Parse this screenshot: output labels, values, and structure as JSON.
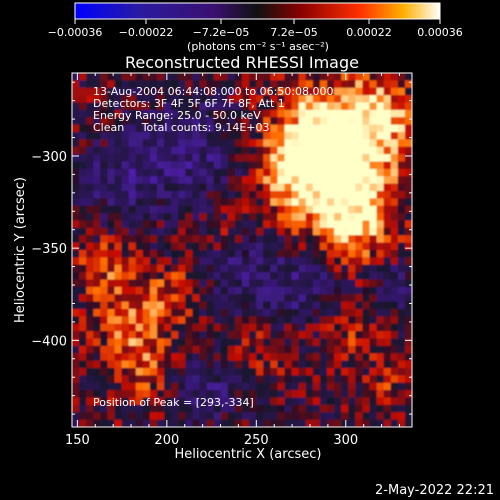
{
  "chart_data": {
    "type": "heatmap",
    "title": "Reconstructed RHESSI Image",
    "xlabel": "Heliocentric X (arcsec)",
    "ylabel": "Heliocentric Y (arcsec)",
    "xlim": [
      147,
      337
    ],
    "ylim": [
      -447,
      -255
    ],
    "xticks": [
      150,
      200,
      250,
      300
    ],
    "yticks": [
      -300,
      -350,
      -400
    ],
    "colorbar": {
      "label": "(photons cm⁻² s⁻¹ asec⁻²)",
      "range": [
        -0.00036,
        0.00036
      ],
      "ticks": [
        {
          "value": -0.00036,
          "label": "−0.00036"
        },
        {
          "value": -0.00022,
          "label": "−0.00022"
        },
        {
          "value": -7.2e-05,
          "label": "−7.2e−05"
        },
        {
          "value": 7.2e-05,
          "label": "7.2e−05"
        },
        {
          "value": 0.00022,
          "label": "0.00022"
        },
        {
          "value": 0.00036,
          "label": "0.00036"
        }
      ]
    },
    "annotations": [
      "13-Aug-2004 06:44:08.000 to 06:50:08.000",
      "Detectors: 3F 4F 5F 6F 7F 8F, Att 1",
      "Energy Range: 25.0 - 50.0 keV",
      "Clean     Total counts: 9.14E+03"
    ],
    "peak_label": "Position of Peak = [293,-334]",
    "peak": [
      293,
      -334
    ],
    "grid": false
  },
  "footer": {
    "date": "2-May-2022 22:21"
  },
  "colors": {
    "background": "#000000",
    "text": "#ffffff"
  }
}
